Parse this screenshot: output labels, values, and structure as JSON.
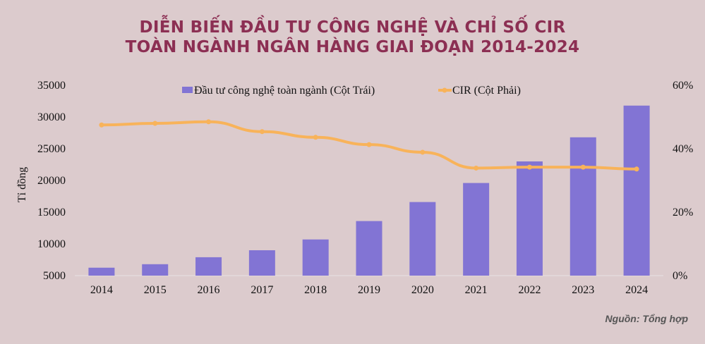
{
  "chart_data": {
    "type": "bar+line",
    "title": "DIỄN BIẾN ĐẦU TƯ CÔNG NGHỆ VÀ CHỈ SỐ CIR",
    "subtitle": "TOÀN NGÀNH NGÂN HÀNG GIAI ĐOẠN 2014-2024",
    "categories": [
      "2014",
      "2015",
      "2016",
      "2017",
      "2018",
      "2019",
      "2020",
      "2021",
      "2022",
      "2023",
      "2024"
    ],
    "series": [
      {
        "name": "Đầu tư công nghệ toàn ngành (Cột Trái)",
        "type": "bar",
        "axis": "left",
        "color": "#8274d4",
        "values": [
          6250,
          6800,
          7900,
          9000,
          10700,
          13600,
          16600,
          19600,
          23000,
          26800,
          31800
        ]
      },
      {
        "name": "CIR (Cột Phải)",
        "type": "line",
        "axis": "right",
        "color": "#f8b35a",
        "values": [
          47.5,
          48.0,
          48.5,
          45.4,
          43.6,
          41.3,
          38.9,
          33.9,
          34.2,
          34.2,
          33.6
        ]
      }
    ],
    "ylabel": "Tỉ đồng",
    "ylim": [
      5000,
      35000
    ],
    "yticks": [
      "5000",
      "10000",
      "15000",
      "20000",
      "25000",
      "30000",
      "35000"
    ],
    "y2lim": [
      0,
      60
    ],
    "y2ticks": [
      "0%",
      "20%",
      "40%",
      "60%"
    ],
    "legend": "top",
    "grid": false
  },
  "source": "Nguồn: Tổng hợp"
}
